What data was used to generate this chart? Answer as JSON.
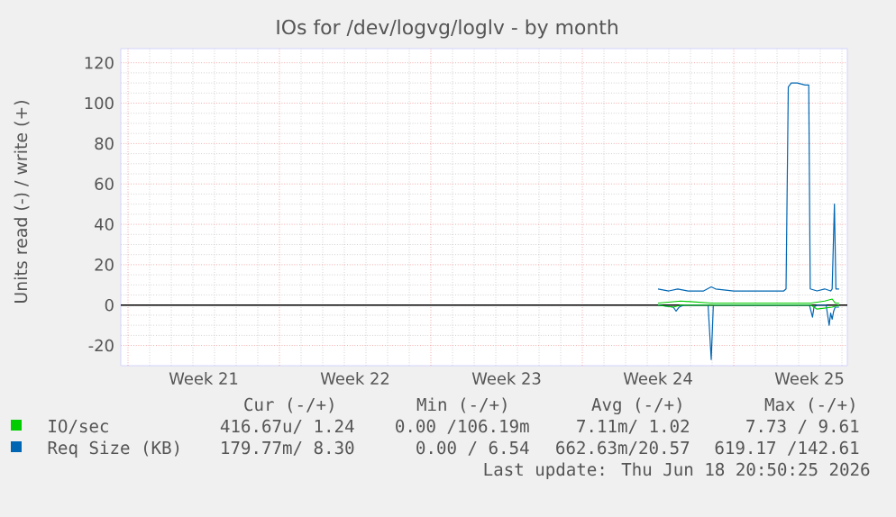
{
  "chart_data": {
    "type": "line",
    "title": "IOs for /dev/logvg/loglv - by month",
    "ylabel": "Units read (-) / write (+)",
    "xlim": [
      "2026-05-16T16:00",
      "2026-06-19T06:00"
    ],
    "ylim": [
      -30,
      127
    ],
    "xticks": [
      {
        "value": "2026-05-17",
        "label": null
      },
      {
        "value": "2026-05-20T12:00",
        "label": "Week 21"
      },
      {
        "value": "2026-05-24",
        "label": null
      },
      {
        "value": "2026-05-27T12:00",
        "label": "Week 22"
      },
      {
        "value": "2026-05-31",
        "label": null
      },
      {
        "value": "2026-06-03T12:00",
        "label": "Week 23"
      },
      {
        "value": "2026-06-07",
        "label": null
      },
      {
        "value": "2026-06-10T12:00",
        "label": "Week 24"
      },
      {
        "value": "2026-06-14",
        "label": null
      },
      {
        "value": "2026-06-17T12:00",
        "label": "Week 25"
      }
    ],
    "yticks": [
      -20,
      0,
      20,
      40,
      60,
      80,
      100,
      120
    ],
    "grid": true,
    "legend": "bottom",
    "ref_lines": [
      {
        "axis": "y",
        "value": 0,
        "color": "#000000"
      }
    ],
    "series": [
      {
        "color": "#0066b3",
        "x": [
          "2026-06-10T12:00",
          "2026-06-11T05:00",
          "2026-06-11T08:00",
          "2026-06-11T11:30",
          "2026-06-11T16:30",
          "2026-06-12T19:30",
          "2026-06-12T23:00",
          "2026-06-13T01:20",
          "2026-06-16T11:00",
          "2026-06-17T12:00",
          "2026-06-17T13:40",
          "2026-06-17T15:20",
          "2026-06-17T17:00",
          "2026-06-17T20:20",
          "2026-06-18T06:30",
          "2026-06-18T09:50",
          "2026-06-18T11:30",
          "2026-06-18T13:10",
          "2026-06-18T14:50",
          "2026-06-18T16:30",
          "2026-06-18T20:50"
        ],
        "values": [
          0,
          -1,
          -3,
          -1,
          0,
          0,
          -27,
          0,
          0,
          0,
          -3,
          -6,
          -1,
          0,
          0,
          -10,
          -4,
          -7,
          -3,
          -1,
          -1
        ]
      },
      {
        "name": "Req Size (KB)",
        "color": "#0066b3",
        "x": [
          "2026-06-10T12:00",
          "2026-06-11T00:00",
          "2026-06-11T09:50",
          "2026-06-11T21:30",
          "2026-06-12T14:30",
          "2026-06-12T23:00",
          "2026-06-13T03:50",
          "2026-06-14T00:00",
          "2026-06-15T01:00",
          "2026-06-15T18:00",
          "2026-06-16T07:30",
          "2026-06-16T10:00",
          "2026-06-16T12:30",
          "2026-06-16T15:50",
          "2026-06-16T22:30",
          "2026-06-17T07:00",
          "2026-06-17T11:10",
          "2026-06-17T12:50",
          "2026-06-17T20:20",
          "2026-06-18T04:50",
          "2026-06-18T11:30",
          "2026-06-18T13:10",
          "2026-06-18T15:40",
          "2026-06-18T17:20",
          "2026-06-18T20:50"
        ],
        "values": [
          8,
          7,
          8,
          7,
          7,
          9,
          8,
          7,
          7,
          7,
          7,
          8,
          108,
          110,
          110,
          109,
          109,
          8,
          7,
          8,
          7,
          8,
          50,
          8,
          8
        ]
      },
      {
        "color": "#00cc00",
        "x": [
          "2026-06-10T12:00",
          "2026-06-11T05:00",
          "2026-06-11T13:10",
          "2026-06-16T11:00",
          "2026-06-17T13:40",
          "2026-06-17T20:20",
          "2026-06-18T13:10",
          "2026-06-18T20:50"
        ],
        "values": [
          0,
          -1,
          0,
          0,
          0,
          -2,
          -1,
          0
        ]
      },
      {
        "name": "IO/sec",
        "color": "#00cc00",
        "x": [
          "2026-06-10T12:00",
          "2026-06-11T13:10",
          "2026-06-12T23:00",
          "2026-06-14T08:30",
          "2026-06-15T18:00",
          "2026-06-16T11:00",
          "2026-06-17T13:40",
          "2026-06-18T04:50",
          "2026-06-18T13:10",
          "2026-06-18T16:30",
          "2026-06-18T20:50"
        ],
        "values": [
          1,
          2,
          1,
          1,
          1,
          1,
          1,
          2,
          3,
          1,
          1
        ]
      }
    ],
    "annotations": [
      "Cur (-/+)",
      "Min (-/+)",
      "Avg (-/+)",
      "Max (-/+)",
      "416.67u/ 1.24",
      "0.00 /106.19m",
      "7.11m/ 1.02",
      "7.73 / 9.61",
      "179.77m/ 8.30",
      "0.00 / 6.54",
      "662.63m/20.57",
      "619.17 /142.61",
      "Last update: Thu Jun 18 20:50:25 2026"
    ]
  }
}
